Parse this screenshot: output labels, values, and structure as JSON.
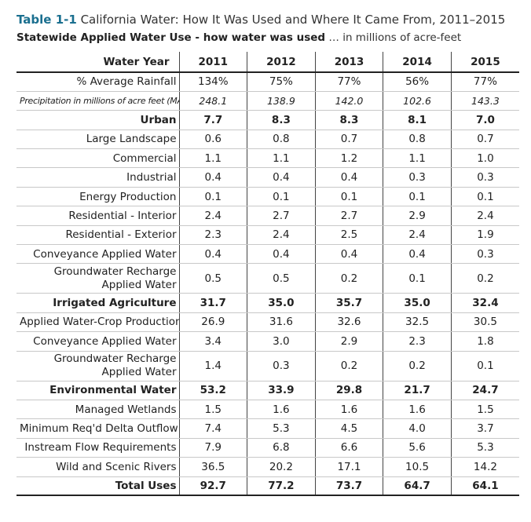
{
  "title": {
    "number": "Table 1-1",
    "text": "California Water: How It Was Used and Where It Came From, 2011–2015"
  },
  "subtitle": {
    "bold": "Statewide Applied Water Use - how water was used",
    "rest": " … in millions of acre-feet"
  },
  "header": {
    "label": "Water Year",
    "years": [
      "2011",
      "2012",
      "2013",
      "2014",
      "2015"
    ]
  },
  "rows": [
    {
      "label": "% Average Rainfall",
      "values": [
        "134%",
        "75%",
        "77%",
        "56%",
        "77%"
      ],
      "style": "row"
    },
    {
      "label": "Precipitation in millions of acre feet (MAF)",
      "values": [
        "248.1",
        "138.9",
        "142.0",
        "102.6",
        "143.3"
      ],
      "style": "italic"
    },
    {
      "label": "Urban",
      "values": [
        "7.7",
        "8.3",
        "8.3",
        "8.1",
        "7.0"
      ],
      "style": "bold"
    },
    {
      "label": "Large Landscape",
      "values": [
        "0.6",
        "0.8",
        "0.7",
        "0.8",
        "0.7"
      ],
      "style": "row"
    },
    {
      "label": "Commercial",
      "values": [
        "1.1",
        "1.1",
        "1.2",
        "1.1",
        "1.0"
      ],
      "style": "row"
    },
    {
      "label": "Industrial",
      "values": [
        "0.4",
        "0.4",
        "0.4",
        "0.3",
        "0.3"
      ],
      "style": "row"
    },
    {
      "label": "Energy Production",
      "values": [
        "0.1",
        "0.1",
        "0.1",
        "0.1",
        "0.1"
      ],
      "style": "row"
    },
    {
      "label": "Residential - Interior",
      "values": [
        "2.4",
        "2.7",
        "2.7",
        "2.9",
        "2.4"
      ],
      "style": "row"
    },
    {
      "label": "Residential - Exterior",
      "values": [
        "2.3",
        "2.4",
        "2.5",
        "2.4",
        "1.9"
      ],
      "style": "row"
    },
    {
      "label": "Conveyance Applied Water",
      "values": [
        "0.4",
        "0.4",
        "0.4",
        "0.4",
        "0.3"
      ],
      "style": "row"
    },
    {
      "label": "Groundwater Recharge Applied Water",
      "values": [
        "0.5",
        "0.5",
        "0.2",
        "0.1",
        "0.2"
      ],
      "style": "tall"
    },
    {
      "label": "Irrigated Agriculture",
      "values": [
        "31.7",
        "35.0",
        "35.7",
        "35.0",
        "32.4"
      ],
      "style": "bold"
    },
    {
      "label": "Applied Water-Crop Production",
      "values": [
        "26.9",
        "31.6",
        "32.6",
        "32.5",
        "30.5"
      ],
      "style": "row"
    },
    {
      "label": "Conveyance Applied Water",
      "values": [
        "3.4",
        "3.0",
        "2.9",
        "2.3",
        "1.8"
      ],
      "style": "row"
    },
    {
      "label": "Groundwater Recharge Applied Water",
      "values": [
        "1.4",
        "0.3",
        "0.2",
        "0.2",
        "0.1"
      ],
      "style": "tall"
    },
    {
      "label": "Environmental Water",
      "values": [
        "53.2",
        "33.9",
        "29.8",
        "21.7",
        "24.7"
      ],
      "style": "bold"
    },
    {
      "label": "Managed Wetlands",
      "values": [
        "1.5",
        "1.6",
        "1.6",
        "1.6",
        "1.5"
      ],
      "style": "row"
    },
    {
      "label": "Minimum Req'd Delta Outflow",
      "values": [
        "7.4",
        "5.3",
        "4.5",
        "4.0",
        "3.7"
      ],
      "style": "row"
    },
    {
      "label": "Instream Flow Requirements",
      "values": [
        "7.9",
        "6.8",
        "6.6",
        "5.6",
        "5.3"
      ],
      "style": "row"
    },
    {
      "label": "Wild and Scenic Rivers",
      "values": [
        "36.5",
        "20.2",
        "17.1",
        "10.5",
        "14.2"
      ],
      "style": "row"
    },
    {
      "label": "Total Uses",
      "values": [
        "92.7",
        "77.2",
        "73.7",
        "64.7",
        "64.1"
      ],
      "style": "total"
    }
  ]
}
